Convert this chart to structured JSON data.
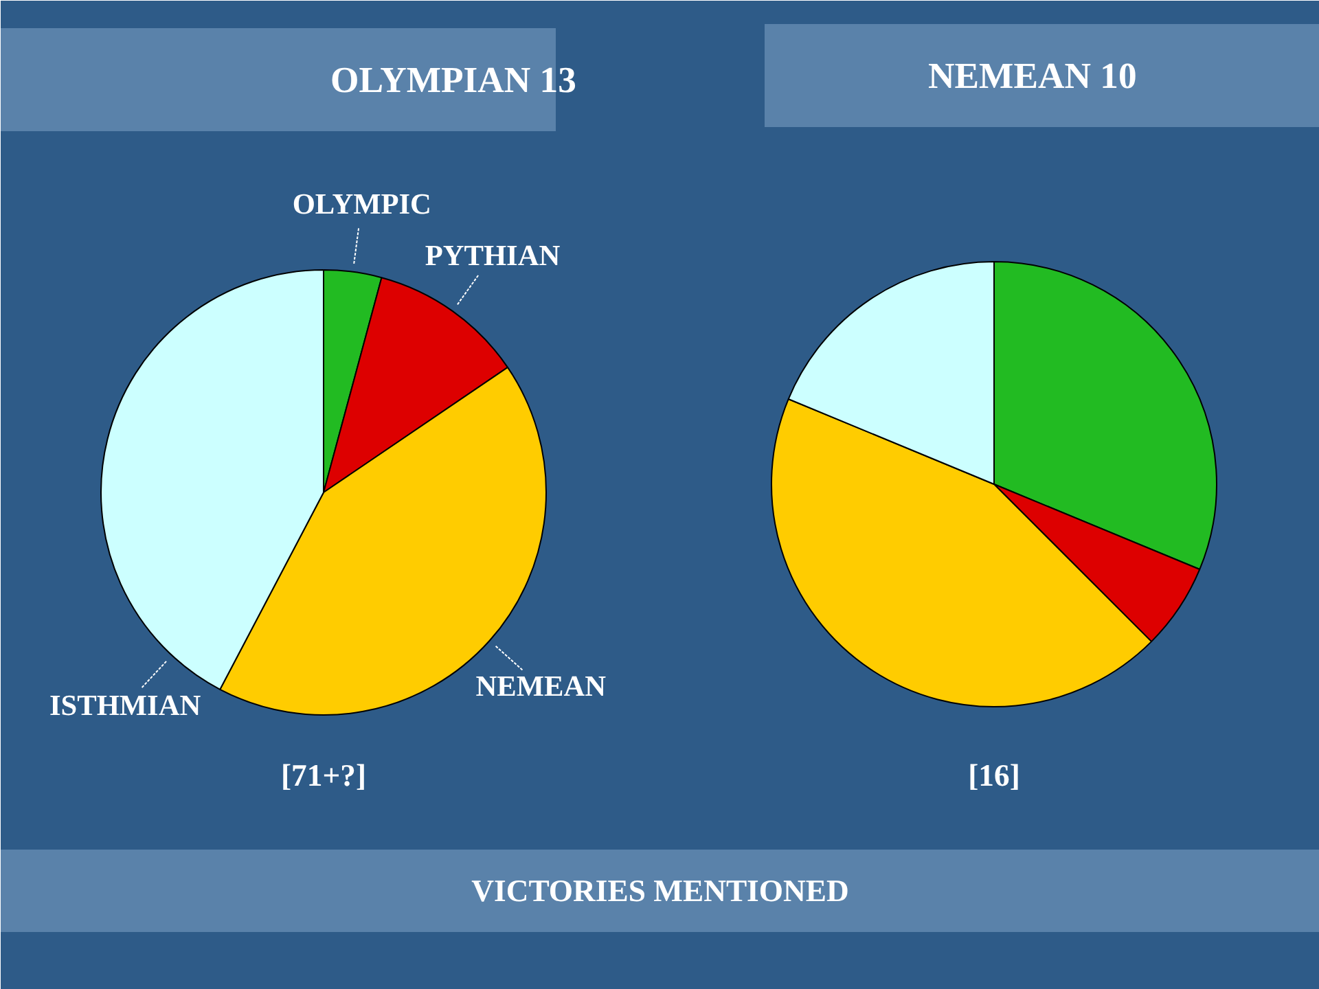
{
  "chart_data": [
    {
      "type": "pie",
      "title": "OLYMPIAN 13",
      "categories": [
        "OLYMPIC",
        "PYTHIAN",
        "NEMEAN",
        "ISTHMIAN"
      ],
      "values": [
        4.2,
        11.3,
        42.2,
        42.3
      ],
      "colors": [
        "#22bb22",
        "#dd0000",
        "#ffcc00",
        "#ccffff"
      ],
      "annotations": [
        "[71+?]",
        "VICTORIES MENTIONED"
      ]
    },
    {
      "type": "pie",
      "title": "NEMEAN 10",
      "categories": [
        null,
        null,
        null,
        null
      ],
      "values": [
        31.25,
        6.25,
        43.75,
        18.75
      ],
      "colors": [
        "#22bb22",
        "#dd0000",
        "#ffcc00",
        "#ccffff"
      ],
      "annotations": [
        "[16]"
      ]
    }
  ]
}
